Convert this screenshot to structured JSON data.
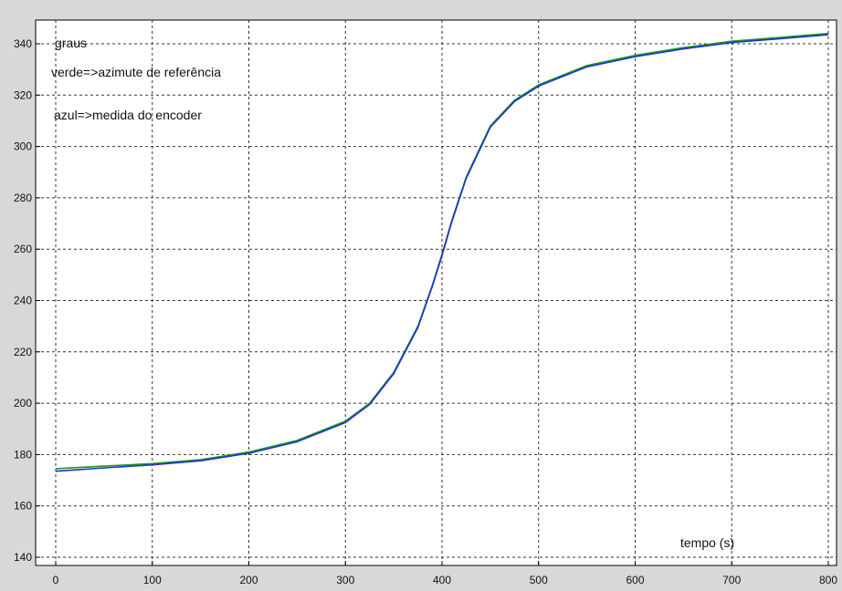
{
  "chart_data": {
    "type": "line",
    "title": "",
    "xlabel": "tempo (s)",
    "ylabel": "graus",
    "xlim": [
      0,
      800
    ],
    "ylim": [
      138,
      344
    ],
    "x_ticks": [
      0,
      100,
      200,
      300,
      400,
      500,
      600,
      700,
      800
    ],
    "y_ticks": [
      140,
      160,
      180,
      200,
      220,
      240,
      260,
      280,
      300,
      320,
      340
    ],
    "grid": true,
    "annotations": [
      "verde=>azimute de referência",
      "azul=>medida do encoder"
    ],
    "series": [
      {
        "color": "#1a9b1a",
        "x": [
          0,
          50,
          100,
          150,
          200,
          250,
          300,
          325,
          350,
          375,
          390,
          400,
          410,
          425,
          450,
          475,
          500,
          550,
          600,
          650,
          700,
          750,
          800
        ],
        "y": [
          174.5,
          175.5,
          176.5,
          178.0,
          181.0,
          185.5,
          193.0,
          200.0,
          212.0,
          230.0,
          246.0,
          258.0,
          271.0,
          288.0,
          308.0,
          318.0,
          324.0,
          331.5,
          335.5,
          338.5,
          341.0,
          342.5,
          344.0
        ]
      },
      {
        "color": "#1e2fd6",
        "x": [
          0,
          50,
          100,
          150,
          200,
          250,
          300,
          325,
          350,
          375,
          390,
          400,
          410,
          425,
          450,
          475,
          500,
          550,
          600,
          650,
          700,
          750,
          800
        ],
        "y": [
          173.5,
          174.8,
          176.0,
          177.6,
          180.5,
          185.0,
          192.5,
          199.5,
          211.5,
          229.5,
          245.5,
          257.5,
          270.5,
          287.5,
          307.5,
          317.5,
          323.5,
          331.0,
          335.0,
          338.0,
          340.5,
          342.0,
          343.5
        ]
      }
    ],
    "colors": {
      "background": "#d8d8d8",
      "plot": "#ffffff",
      "grid": "#333333"
    }
  }
}
